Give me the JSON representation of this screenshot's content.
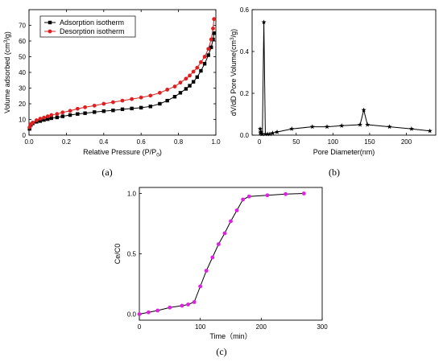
{
  "panel_labels": [
    "(a)",
    "(b)",
    "(c)"
  ],
  "chart_data": [
    {
      "type": "line",
      "panel": "(a)",
      "xlabel": "Relative Pressure (P/P0)",
      "xlabel_main": "Relative Pressure (P/P",
      "xlabel_sub": "0",
      "xlabel_tail": ")",
      "ylabel": "Volume adsorbed (cm3/g)",
      "ylabel_main": "Volume adsorbed (cm",
      "ylabel_sup": "3",
      "ylabel_tail": "/g)",
      "xlim": [
        0,
        1.0
      ],
      "ylim": [
        0,
        80
      ],
      "xticks": [
        0.0,
        0.2,
        0.4,
        0.6,
        0.8,
        1.0
      ],
      "xtick_labels": [
        "0.0",
        "0.2",
        "0.4",
        "0.6",
        "0.8",
        "1.0"
      ],
      "yticks": [
        0,
        10,
        20,
        30,
        40,
        50,
        60,
        70
      ],
      "ytick_labels": [
        "0",
        "10",
        "20",
        "30",
        "40",
        "50",
        "60",
        "70"
      ],
      "legend_position": "top-left",
      "series": [
        {
          "name": "Adsorption isotherm",
          "color": "#000000",
          "marker": "square",
          "x": [
            0.003,
            0.01,
            0.02,
            0.04,
            0.06,
            0.08,
            0.1,
            0.12,
            0.15,
            0.18,
            0.22,
            0.26,
            0.3,
            0.35,
            0.4,
            0.45,
            0.5,
            0.55,
            0.6,
            0.65,
            0.7,
            0.74,
            0.78,
            0.81,
            0.84,
            0.86,
            0.88,
            0.9,
            0.92,
            0.94,
            0.96,
            0.975,
            0.985,
            0.99
          ],
          "y": [
            4,
            6.5,
            7.5,
            8.5,
            9,
            9.7,
            10.2,
            10.8,
            11.3,
            12,
            12.8,
            13.5,
            14,
            14.7,
            15.3,
            15.8,
            16.5,
            17,
            17.5,
            18.3,
            20,
            22,
            24.5,
            27,
            29.5,
            31.5,
            34,
            37,
            41,
            45.5,
            51,
            56,
            61,
            65
          ]
        },
        {
          "name": "Desorption isotherm",
          "color": "#e02020",
          "marker": "circle",
          "x": [
            0.003,
            0.01,
            0.02,
            0.04,
            0.06,
            0.08,
            0.1,
            0.12,
            0.15,
            0.18,
            0.22,
            0.26,
            0.3,
            0.35,
            0.4,
            0.45,
            0.5,
            0.55,
            0.6,
            0.65,
            0.7,
            0.74,
            0.78,
            0.81,
            0.84,
            0.86,
            0.88,
            0.9,
            0.92,
            0.94,
            0.96,
            0.975,
            0.985,
            0.99
          ],
          "y": [
            5,
            7,
            8,
            9.5,
            10.5,
            11.2,
            12,
            12.8,
            13.5,
            14.5,
            15.5,
            16.8,
            17.8,
            18.8,
            20,
            21,
            22,
            23,
            24,
            25.2,
            27,
            29,
            31,
            33.5,
            36,
            38,
            40.5,
            43,
            46.5,
            50,
            55,
            61,
            68,
            74
          ]
        }
      ]
    },
    {
      "type": "line",
      "panel": "(b)",
      "xlabel": "Pore Diameter(nm)",
      "ylabel": "dV/dD Pore Volume(cm3/g)",
      "ylabel_main": "dV/dD Pore Volume(cm",
      "ylabel_sup": "3",
      "ylabel_tail": "/g)",
      "xlim": [
        -10,
        240
      ],
      "ylim": [
        0,
        0.6
      ],
      "xticks": [
        0,
        50,
        100,
        150,
        200
      ],
      "xtick_labels": [
        "0",
        "50",
        "100",
        "150",
        "200"
      ],
      "yticks": [
        0.0,
        0.2,
        0.4,
        0.6
      ],
      "ytick_labels": [
        "0.0",
        "0.2",
        "0.4",
        "0.6"
      ],
      "series": [
        {
          "color": "#000000",
          "marker": "star",
          "x": [
            1,
            1.5,
            2,
            3,
            4,
            6,
            8,
            11,
            14,
            18,
            24,
            44,
            72,
            92,
            112,
            137,
            142,
            147,
            177,
            207,
            232
          ],
          "y": [
            0.03,
            0.01,
            0.015,
            0.005,
            0.005,
            0.54,
            0.005,
            0.005,
            0.005,
            0.01,
            0.015,
            0.03,
            0.04,
            0.04,
            0.045,
            0.05,
            0.12,
            0.05,
            0.04,
            0.03,
            0.02
          ]
        }
      ]
    },
    {
      "type": "line",
      "panel": "(c)",
      "xlabel": "Time（min）",
      "ylabel": "Ce/C0",
      "xlim": [
        0,
        300
      ],
      "ylim": [
        -0.05,
        1.05
      ],
      "xticks": [
        0,
        100,
        200,
        300
      ],
      "xtick_labels": [
        "0",
        "100",
        "200",
        "300"
      ],
      "yticks": [
        0.0,
        0.5,
        1.0
      ],
      "ytick_labels": [
        "0.0",
        "0.5",
        "1.0"
      ],
      "series": [
        {
          "color": "#e020e0",
          "marker": "circle",
          "x": [
            0,
            15,
            30,
            50,
            70,
            80,
            90,
            100,
            110,
            120,
            130,
            140,
            150,
            160,
            170,
            180,
            210,
            240,
            270
          ],
          "y": [
            0.0,
            0.015,
            0.03,
            0.055,
            0.07,
            0.08,
            0.1,
            0.23,
            0.36,
            0.47,
            0.58,
            0.67,
            0.77,
            0.86,
            0.95,
            0.975,
            0.985,
            0.995,
            1.0
          ]
        }
      ]
    }
  ]
}
